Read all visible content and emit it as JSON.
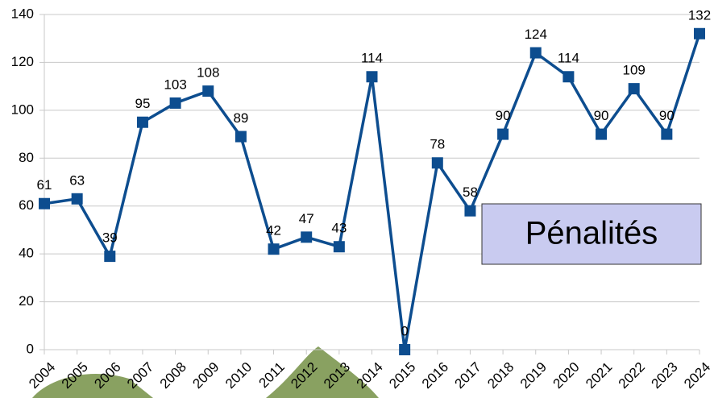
{
  "chart_data": {
    "type": "line",
    "annotation": "Pénalités",
    "categories": [
      "2004",
      "2005",
      "2006",
      "2007",
      "2008",
      "2009",
      "2010",
      "2011",
      "2012",
      "2013",
      "2014",
      "2015",
      "2016",
      "2017",
      "2018",
      "2019",
      "2020",
      "2021",
      "2022",
      "2023",
      "2024"
    ],
    "values": [
      61,
      63,
      39,
      95,
      103,
      108,
      89,
      42,
      47,
      43,
      114,
      0,
      78,
      58,
      90,
      124,
      114,
      90,
      109,
      90,
      132
    ],
    "color": "#0d4d8f",
    "ylim": [
      0,
      140
    ],
    "yticks": [
      0,
      20,
      40,
      60,
      80,
      100,
      120,
      140
    ],
    "grid": true,
    "data_labels": true
  }
}
